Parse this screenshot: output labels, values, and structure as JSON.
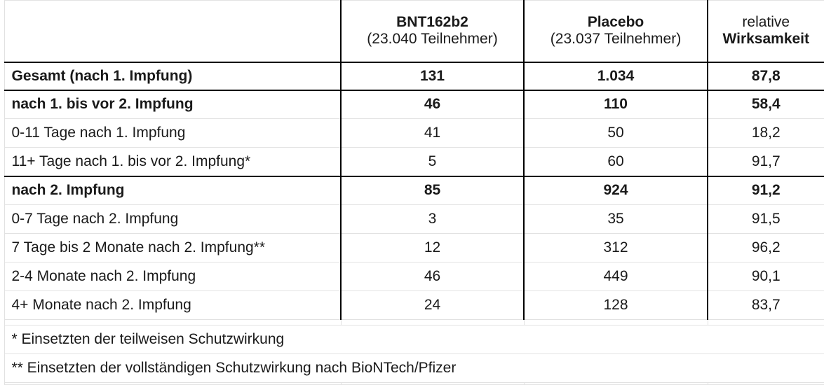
{
  "header": {
    "col_bnt": {
      "name": "BNT162b2",
      "participants": "(23.040 Teilnehmer)"
    },
    "col_placebo": {
      "name": "Placebo",
      "participants": "(23.037 Teilnehmer)"
    },
    "col_efficacy": {
      "line1": "relative",
      "line2": "Wirksamkeit"
    }
  },
  "rows": [
    {
      "label": "Gesamt (nach 1. Impfung)",
      "bnt": "131",
      "placebo": "1.034",
      "efficacy": "87,8"
    },
    {
      "label": "nach 1. bis vor 2. Impfung",
      "bnt": "46",
      "placebo": "110",
      "efficacy": "58,4"
    },
    {
      "label": "0-11 Tage nach 1. Impfung",
      "bnt": "41",
      "placebo": "50",
      "efficacy": "18,2"
    },
    {
      "label": "11+ Tage nach 1. bis vor 2. Impfung*",
      "bnt": "5",
      "placebo": "60",
      "efficacy": "91,7"
    },
    {
      "label": "nach 2. Impfung",
      "bnt": "85",
      "placebo": "924",
      "efficacy": "91,2"
    },
    {
      "label": "0-7 Tage nach 2. Impfung",
      "bnt": "3",
      "placebo": "35",
      "efficacy": "91,5"
    },
    {
      "label": "7 Tage bis 2 Monate nach 2. Impfung**",
      "bnt": "12",
      "placebo": "312",
      "efficacy": "96,2"
    },
    {
      "label": "2-4 Monate nach 2. Impfung",
      "bnt": "46",
      "placebo": "449",
      "efficacy": "90,1"
    },
    {
      "label": "4+ Monate nach 2. Impfung",
      "bnt": "24",
      "placebo": "128",
      "efficacy": "83,7"
    }
  ],
  "footnotes": [
    "* Einsetzten der teilweisen Schutzwirkung",
    "** Einsetzten der vollständigen Schutzwirkung nach BioNTech/Pfizer"
  ]
}
